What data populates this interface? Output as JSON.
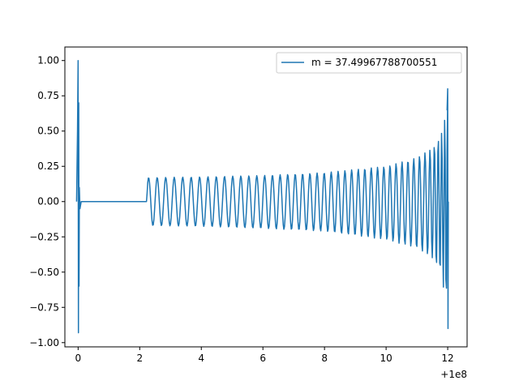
{
  "chart_data": {
    "type": "line",
    "title": "",
    "xlabel": "",
    "ylabel": "",
    "x_offset_label": "+1e8",
    "xlim": [
      -0.43,
      12.63
    ],
    "ylim": [
      -1.03,
      1.096
    ],
    "x_ticks": [
      0,
      2,
      4,
      6,
      8,
      10,
      12
    ],
    "x_tick_labels": [
      "0",
      "2",
      "4",
      "6",
      "8",
      "10",
      "12"
    ],
    "y_ticks": [
      -1.0,
      -0.75,
      -0.5,
      -0.25,
      0.0,
      0.25,
      0.5,
      0.75,
      1.0
    ],
    "y_tick_labels": [
      "−1.00",
      "−0.75",
      "−0.50",
      "−0.25",
      "0.00",
      "0.25",
      "0.50",
      "0.75",
      "1.00"
    ],
    "grid": false,
    "legend_position": "top-right",
    "series": [
      {
        "name": "m = 37.49967788700551",
        "color": "#1f77b4",
        "description_of_shape": "sharp spike near x=0 reaching 1.0 and -0.93, flat zero until x≈2.2, then oscillation with envelope growing from 0.17 to ~0.8 near x=12, ending with a dip to -0.9",
        "envelope_points": [
          {
            "x": 0.0,
            "ymax": 1.0,
            "ymin": -0.93
          },
          {
            "x": 0.1,
            "ymax": 0.0,
            "ymin": 0.0
          },
          {
            "x": 2.2,
            "ymax": 0.0,
            "ymin": 0.0
          },
          {
            "x": 2.25,
            "ymax": 0.17,
            "ymin": -0.17
          },
          {
            "x": 4.0,
            "ymax": 0.175,
            "ymin": -0.175
          },
          {
            "x": 6.0,
            "ymax": 0.185,
            "ymin": -0.19
          },
          {
            "x": 8.0,
            "ymax": 0.205,
            "ymin": -0.21
          },
          {
            "x": 10.0,
            "ymax": 0.25,
            "ymin": -0.27
          },
          {
            "x": 11.0,
            "ymax": 0.31,
            "ymin": -0.33
          },
          {
            "x": 11.5,
            "ymax": 0.38,
            "ymin": -0.4
          },
          {
            "x": 11.8,
            "ymax": 0.5,
            "ymin": -0.55
          },
          {
            "x": 11.95,
            "ymax": 0.65,
            "ymin": -0.75
          },
          {
            "x": 12.0,
            "ymax": 0.8,
            "ymin": -0.9
          }
        ]
      }
    ]
  }
}
